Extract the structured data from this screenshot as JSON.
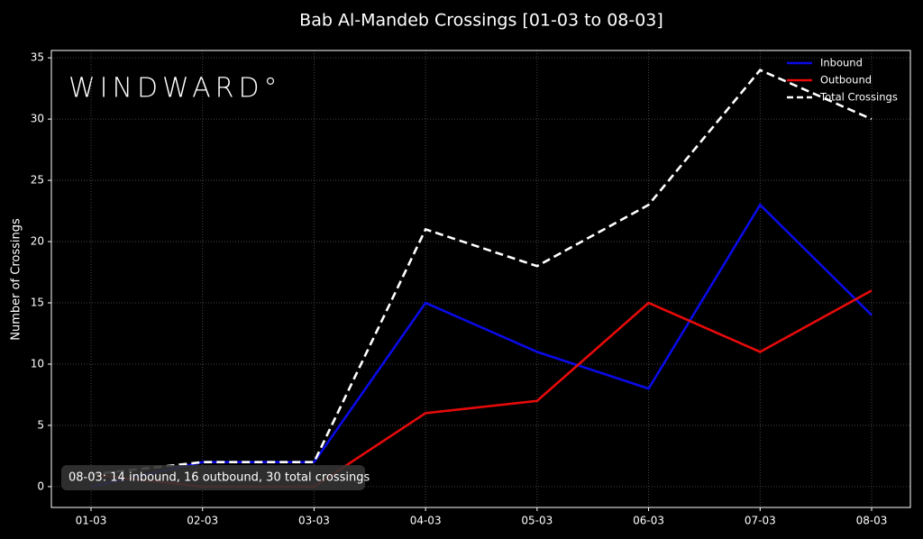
{
  "chart_data": {
    "type": "line",
    "title": "Bab Al-Mandeb Crossings [01-03 to 08-03]",
    "y_label": "Number of Crossings",
    "logo": "WINDWARD°",
    "annotation": "08-03: 14 inbound, 16 outbound, 30 total crossings",
    "categories": [
      "01-03",
      "02-03",
      "03-03",
      "04-03",
      "05-03",
      "06-03",
      "07-03",
      "08-03"
    ],
    "series": [
      {
        "name": "Inbound",
        "color": "#0a0ae6",
        "dashed": false,
        "values": [
          0,
          2,
          2,
          15,
          11,
          8,
          23,
          14
        ]
      },
      {
        "name": "Outbound",
        "color": "#e60a0a",
        "dashed": false,
        "values": [
          1,
          0,
          0,
          6,
          7,
          15,
          11,
          16
        ]
      },
      {
        "name": "Total Crossings",
        "color": "#ffffff",
        "dashed": true,
        "values": [
          1,
          2,
          2,
          21,
          18,
          23,
          34,
          30
        ]
      }
    ],
    "ylim": [
      -1.7,
      35.6
    ],
    "yticks": [
      0,
      5,
      10,
      15,
      20,
      25,
      30,
      35
    ],
    "grid": true,
    "legend": "upper right"
  }
}
